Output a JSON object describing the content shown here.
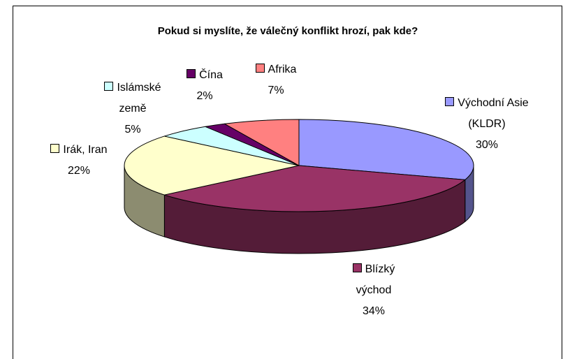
{
  "chart_data": {
    "type": "pie",
    "title": "Pokud si myslíte, že válečný konflikt hrozí, pak kde?",
    "categories": [
      "Východní Asie (KLDR)",
      "Blízký východ",
      "Irák, Iran",
      "Islámské země",
      "Čína",
      "Afrika"
    ],
    "values": [
      30,
      34,
      22,
      5,
      2,
      7
    ],
    "value_labels": [
      "30%",
      "34%",
      "22%",
      "5%",
      "2%",
      "7%"
    ],
    "colors": [
      "#9999ff",
      "#993366",
      "#ffffcc",
      "#ccffff",
      "#660066",
      "#ff8080"
    ]
  }
}
